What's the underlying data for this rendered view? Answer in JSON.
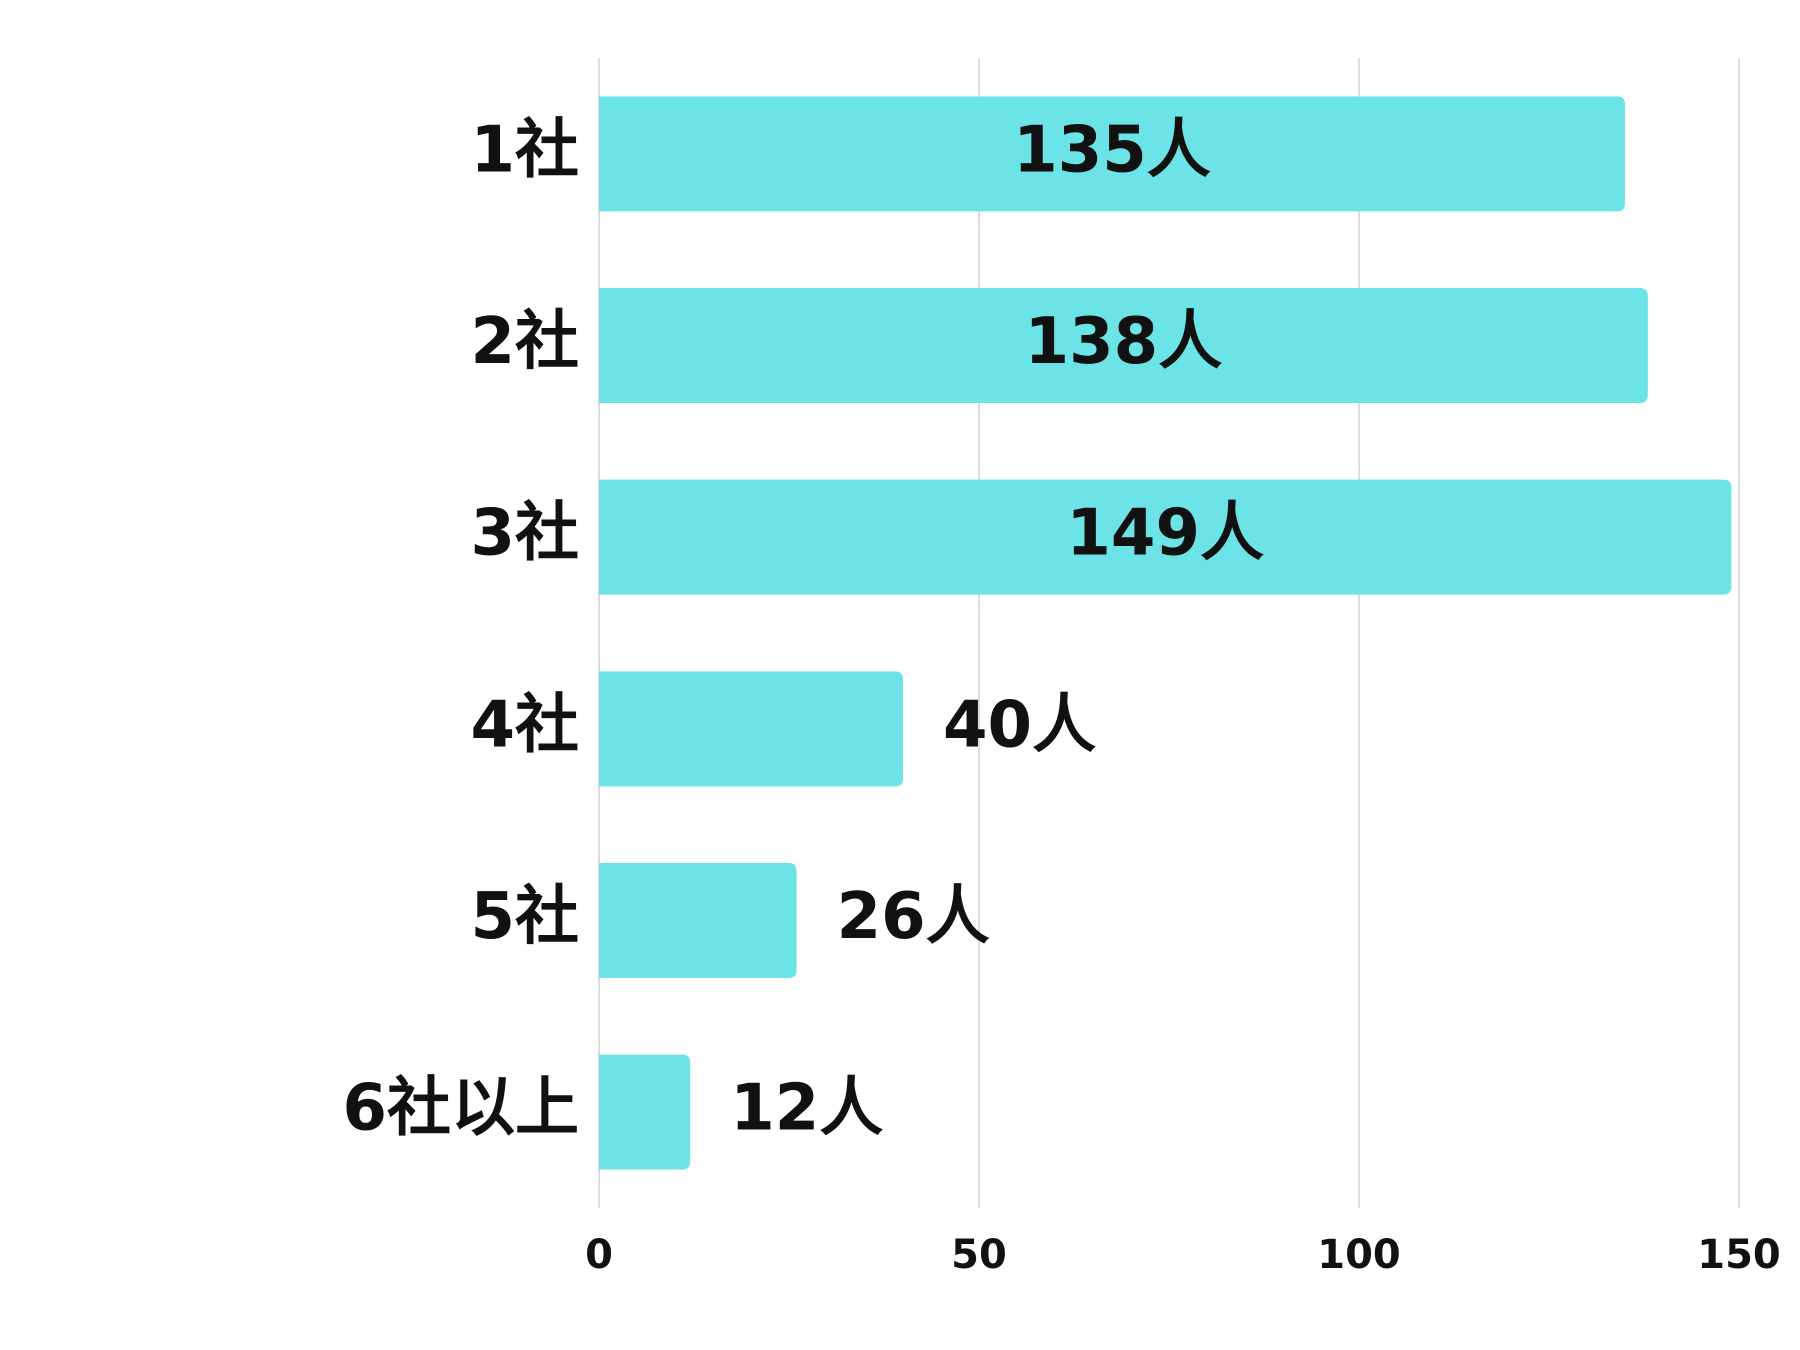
{
  "chart_data": {
    "type": "bar",
    "orientation": "horizontal",
    "categories": [
      "1社",
      "2社",
      "3社",
      "4社",
      "5社",
      "6社以上"
    ],
    "values": [
      135,
      138,
      149,
      40,
      26,
      12
    ],
    "value_labels": [
      "135人",
      "138人",
      "149人",
      "40人",
      "26人",
      "12人"
    ],
    "color": "#6ce3e6",
    "xlim": [
      0,
      150
    ],
    "xticks": [
      0,
      50,
      100,
      150
    ],
    "grid": true
  }
}
